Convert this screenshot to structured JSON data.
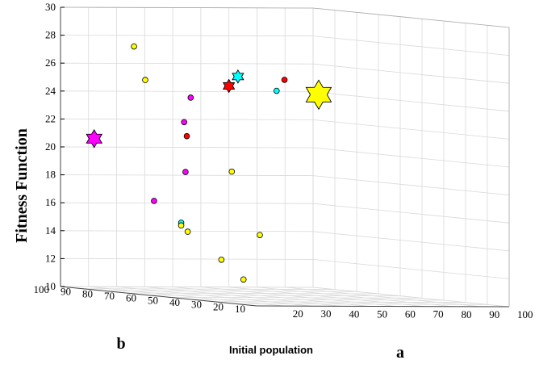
{
  "chart_data": {
    "type": "scatter3d",
    "title": "",
    "xlabel": "a",
    "ylabel": "b",
    "zlabel": "Fitness Function",
    "annotation": "Initial population",
    "xlim": [
      10,
      100
    ],
    "ylim": [
      10,
      100
    ],
    "zlim": [
      10,
      30
    ],
    "x_ticks": [
      "20",
      "30",
      "40",
      "50",
      "60",
      "70",
      "80",
      "90",
      "100"
    ],
    "y_ticks": [
      "10",
      "20",
      "30",
      "40",
      "50",
      "60",
      "70",
      "80",
      "90",
      "100"
    ],
    "z_ticks": [
      "10",
      "12",
      "14",
      "16",
      "18",
      "20",
      "22",
      "24",
      "26",
      "28",
      "30"
    ],
    "grid": true,
    "colors": {
      "yellow": "#ffff00",
      "red": "#ff0000",
      "magenta": "#ff00ff",
      "cyan": "#00ffff"
    },
    "points": [
      {
        "a": 36,
        "b": 94,
        "z": 27.6,
        "color": "yellow"
      },
      {
        "a": 36,
        "b": 90,
        "z": 25.2,
        "color": "yellow"
      },
      {
        "a": 53,
        "b": 87,
        "z": 24.2,
        "color": "magenta"
      },
      {
        "a": 50,
        "b": 87,
        "z": 22.4,
        "color": "magenta"
      },
      {
        "a": 59,
        "b": 77,
        "z": 19.0,
        "color": "yellow"
      },
      {
        "a": 68,
        "b": 74,
        "z": 14.6,
        "color": "yellow"
      },
      {
        "a": 21,
        "b": 64,
        "z": 18.4,
        "color": "magenta"
      },
      {
        "a": 13,
        "b": 69,
        "z": 16.2,
        "color": "magenta"
      },
      {
        "a": 13,
        "b": 57,
        "z": 14.0,
        "color": "yellow"
      },
      {
        "a": 10,
        "b": 57,
        "z": 14.6,
        "color": "cyan"
      },
      {
        "a": 10,
        "b": 57,
        "z": 14.4,
        "color": "yellow"
      },
      {
        "a": 13,
        "b": 45,
        "z": 12.0,
        "color": "yellow"
      },
      {
        "a": 27,
        "b": 48,
        "z": 10.8,
        "color": "yellow"
      },
      {
        "a": 60,
        "b": 59,
        "z": 25.6,
        "color": "red"
      },
      {
        "a": 86,
        "b": 82,
        "z": 25.2,
        "color": "cyan"
      },
      {
        "a": 10,
        "b": 55,
        "z": 20.8,
        "color": "red"
      }
    ],
    "best": [
      {
        "a": 10,
        "b": 8,
        "z": 23.8,
        "color": "yellow",
        "size": "large"
      },
      {
        "a": 10,
        "b": 40,
        "z": 24.4,
        "color": "red",
        "size": "small"
      },
      {
        "a": 10,
        "b": 88,
        "z": 20.6,
        "color": "magenta",
        "size": "medium"
      },
      {
        "a": 85,
        "b": 95,
        "z": 26.2,
        "color": "cyan",
        "size": "small"
      }
    ]
  }
}
